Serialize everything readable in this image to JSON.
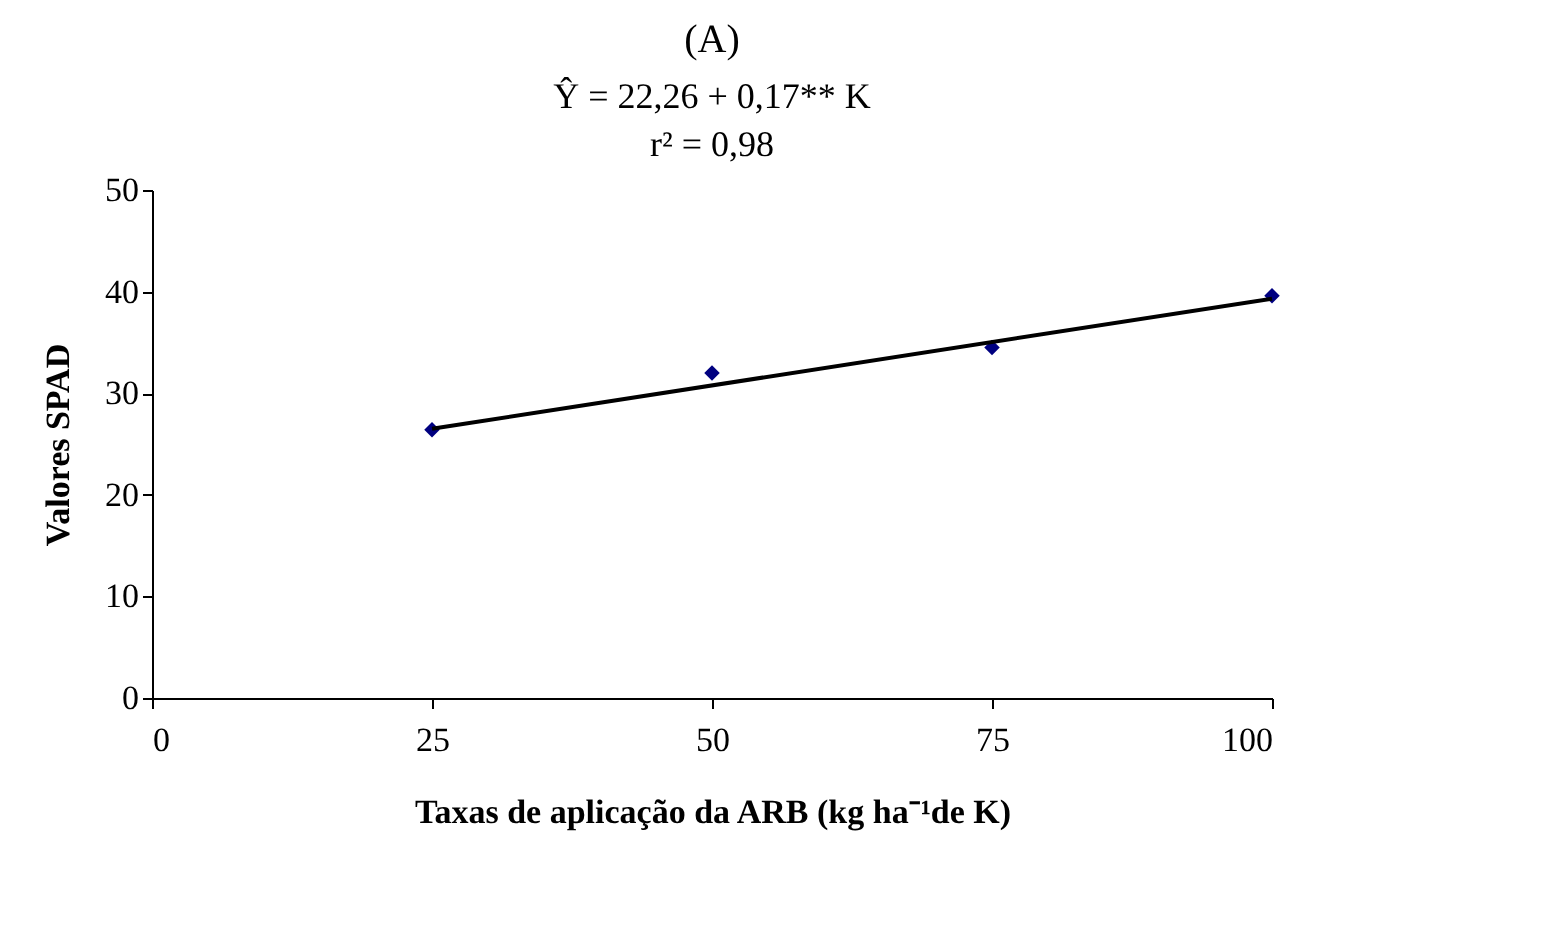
{
  "chart_data": {
    "type": "scatter",
    "title": "(A)",
    "annotations": [
      "Ŷ =  22,26 + 0,17** K",
      "r² = 0,98"
    ],
    "xlabel": "Taxas de aplicação da ARB (kg ha⁻¹de K)",
    "ylabel": "Valores SPAD",
    "x": [
      25,
      50,
      75,
      100
    ],
    "xlim": [
      0,
      100
    ],
    "xticks": [
      0,
      25,
      50,
      75,
      100
    ],
    "ylim": [
      0,
      50
    ],
    "yticks": [
      0,
      10,
      20,
      30,
      40,
      50
    ],
    "grid": false,
    "series": [
      {
        "color": "#000080",
        "marker": "diamond",
        "values": [
          26.4,
          32,
          34.5,
          39.6
        ]
      },
      {
        "type": "line",
        "color": "#000000",
        "line_style": "solid",
        "x": [
          25,
          100
        ],
        "values": [
          26.5,
          39.3
        ]
      }
    ]
  }
}
